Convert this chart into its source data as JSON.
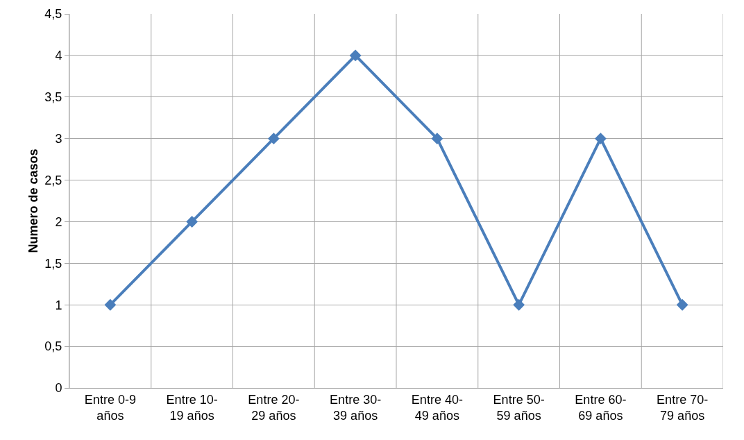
{
  "chart_data": {
    "type": "line",
    "ylabel": "Numero de casos",
    "categories": [
      "Entre 0-9 años",
      "Entre 10-19 años",
      "Entre 20-29 años",
      "Entre 30-39 años",
      "Entre 40-49 años",
      "Entre 50-59 años",
      "Entre 60-69 años",
      "Entre 70-79 años"
    ],
    "series": [
      {
        "color": "#4a7ebb",
        "values": [
          1,
          2,
          3,
          4,
          3,
          1,
          3,
          1
        ]
      }
    ],
    "ylim": [
      0,
      4.5
    ],
    "yticks": [
      0,
      {
        "value": 0.5,
        "label": "0,5"
      },
      1,
      {
        "value": 1.5,
        "label": "1,5"
      },
      2,
      {
        "value": 2.5,
        "label": "2,5"
      },
      3,
      {
        "value": 3.5,
        "label": "3,5"
      },
      4,
      {
        "value": 4.5,
        "label": "4,5"
      }
    ],
    "grid": true,
    "marker": "diamond",
    "line_style": "solid"
  }
}
